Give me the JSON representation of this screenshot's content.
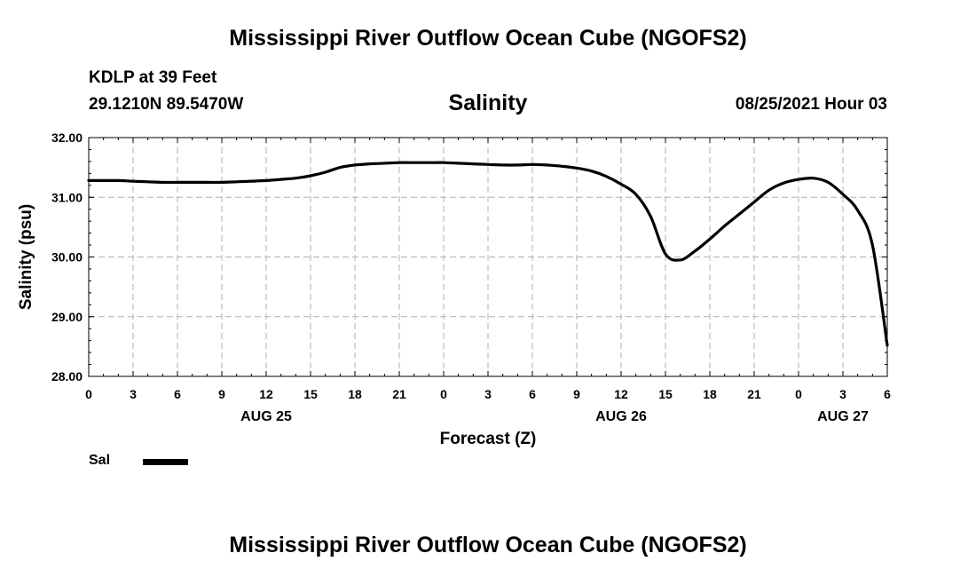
{
  "header": {
    "title": "Mississippi River Outflow Ocean Cube (NGOFS2)",
    "station": "KDLP at 39 Feet",
    "coords": "29.1210N  89.5470W",
    "datetime": "08/25/2021 Hour 03"
  },
  "footer": {
    "title": "Mississippi River Outflow Ocean Cube (NGOFS2)"
  },
  "legend": {
    "label": "Sal",
    "color": "#000000"
  },
  "chart_data": {
    "type": "line",
    "title": "Salinity",
    "xlabel": "Forecast (Z)",
    "ylabel": "Salinity (psu)",
    "xlim": [
      0,
      54
    ],
    "ylim": [
      28.0,
      32.0
    ],
    "yticks": [
      "28.00",
      "29.00",
      "30.00",
      "31.00",
      "32.00"
    ],
    "ytick_values": [
      28,
      29,
      30,
      31,
      32
    ],
    "xtick_labels": [
      "0",
      "3",
      "6",
      "9",
      "12",
      "15",
      "18",
      "21",
      "0",
      "3",
      "6",
      "9",
      "12",
      "15",
      "18",
      "21",
      "0",
      "3",
      "6"
    ],
    "xtick_hours": [
      0,
      3,
      6,
      9,
      12,
      15,
      18,
      21,
      24,
      27,
      30,
      33,
      36,
      39,
      42,
      45,
      48,
      51,
      54
    ],
    "date_labels": [
      {
        "label": "AUG 25",
        "hour": 12
      },
      {
        "label": "AUG 26",
        "hour": 36
      },
      {
        "label": "AUG 27",
        "hour": 51
      }
    ],
    "grid": true,
    "series": [
      {
        "name": "Sal",
        "color": "#000000",
        "x": [
          0,
          1,
          2,
          3,
          4,
          5,
          6,
          7,
          8,
          9,
          10,
          11,
          12,
          13,
          14,
          15,
          16,
          17,
          18,
          19,
          20,
          21,
          22,
          23,
          24,
          25,
          26,
          27,
          28,
          29,
          30,
          31,
          32,
          33,
          34,
          35,
          36,
          37,
          38,
          39,
          40,
          41,
          42,
          43,
          44,
          45,
          46,
          47,
          48,
          49,
          50,
          51,
          52,
          53,
          54
        ],
        "values": [
          31.28,
          31.28,
          31.28,
          31.27,
          31.26,
          31.25,
          31.25,
          31.25,
          31.25,
          31.25,
          31.26,
          31.27,
          31.28,
          31.3,
          31.32,
          31.36,
          31.42,
          31.5,
          31.54,
          31.56,
          31.57,
          31.58,
          31.58,
          31.58,
          31.58,
          31.57,
          31.56,
          31.55,
          31.54,
          31.54,
          31.55,
          31.54,
          31.52,
          31.49,
          31.44,
          31.35,
          31.22,
          31.05,
          30.68,
          30.05,
          29.95,
          30.1,
          30.3,
          30.52,
          30.72,
          30.92,
          31.12,
          31.24,
          31.3,
          31.32,
          31.25,
          31.05,
          30.78,
          30.2,
          28.52
        ]
      }
    ]
  }
}
